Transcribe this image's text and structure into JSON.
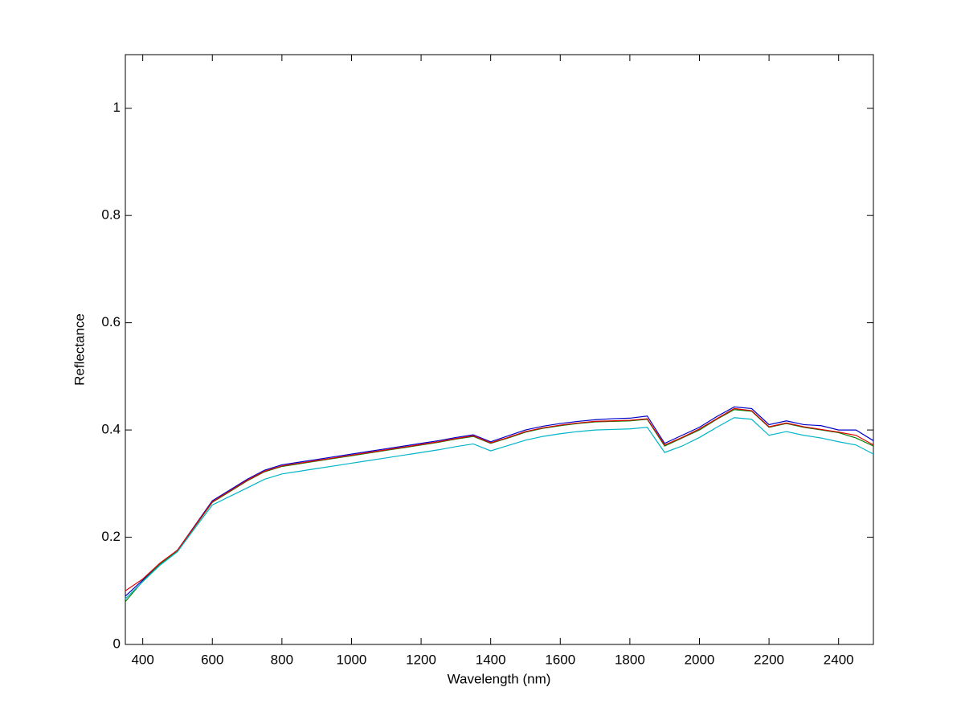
{
  "chart_data": {
    "type": "line",
    "x_label": "Wavelength (nm)",
    "y_label": "Reflectance",
    "x": [
      350,
      400,
      450,
      500,
      550,
      600,
      650,
      700,
      750,
      800,
      850,
      900,
      950,
      1000,
      1050,
      1100,
      1150,
      1200,
      1250,
      1300,
      1350,
      1400,
      1450,
      1500,
      1550,
      1600,
      1650,
      1700,
      1750,
      1800,
      1850,
      1900,
      1950,
      2000,
      2050,
      2100,
      2150,
      2200,
      2250,
      2300,
      2350,
      2400,
      2450,
      2500
    ],
    "series": [
      {
        "color": "#0000c8",
        "values": [
          0.09,
          0.12,
          0.15,
          0.176,
          0.222,
          0.268,
          0.288,
          0.308,
          0.325,
          0.335,
          0.34,
          0.345,
          0.35,
          0.355,
          0.36,
          0.365,
          0.37,
          0.375,
          0.38,
          0.386,
          0.391,
          0.378,
          0.389,
          0.4,
          0.407,
          0.412,
          0.416,
          0.419,
          0.421,
          0.422,
          0.426,
          0.375,
          0.39,
          0.405,
          0.425,
          0.443,
          0.44,
          0.41,
          0.417,
          0.41,
          0.408,
          0.4,
          0.4,
          0.38
        ]
      },
      {
        "color": "#008000",
        "values": [
          0.08,
          0.118,
          0.15,
          0.175,
          0.22,
          0.265,
          0.285,
          0.305,
          0.322,
          0.332,
          0.337,
          0.342,
          0.347,
          0.352,
          0.357,
          0.362,
          0.367,
          0.372,
          0.377,
          0.383,
          0.388,
          0.375,
          0.385,
          0.396,
          0.403,
          0.408,
          0.412,
          0.415,
          0.416,
          0.417,
          0.42,
          0.37,
          0.385,
          0.4,
          0.42,
          0.438,
          0.435,
          0.405,
          0.412,
          0.405,
          0.4,
          0.395,
          0.385,
          0.37
        ]
      },
      {
        "color": "#e00000",
        "values": [
          0.1,
          0.122,
          0.152,
          0.176,
          0.221,
          0.266,
          0.286,
          0.306,
          0.323,
          0.333,
          0.338,
          0.343,
          0.348,
          0.353,
          0.358,
          0.363,
          0.368,
          0.373,
          0.378,
          0.384,
          0.389,
          0.376,
          0.386,
          0.397,
          0.404,
          0.409,
          0.413,
          0.416,
          0.417,
          0.418,
          0.421,
          0.372,
          0.386,
          0.402,
          0.421,
          0.44,
          0.436,
          0.406,
          0.413,
          0.406,
          0.401,
          0.396,
          0.39,
          0.372
        ]
      },
      {
        "color": "#00b4c8",
        "values": [
          0.085,
          0.117,
          0.148,
          0.173,
          0.217,
          0.26,
          0.276,
          0.292,
          0.308,
          0.318,
          0.323,
          0.328,
          0.333,
          0.338,
          0.343,
          0.348,
          0.353,
          0.358,
          0.363,
          0.369,
          0.374,
          0.361,
          0.371,
          0.381,
          0.388,
          0.393,
          0.397,
          0.4,
          0.401,
          0.402,
          0.405,
          0.358,
          0.37,
          0.386,
          0.405,
          0.423,
          0.42,
          0.39,
          0.397,
          0.39,
          0.385,
          0.378,
          0.372,
          0.355
        ]
      }
    ],
    "xlim": [
      350,
      2500
    ],
    "xticks": [
      400,
      600,
      800,
      1000,
      1200,
      1400,
      1600,
      1800,
      2000,
      2200,
      2400
    ],
    "ylim": [
      0,
      1.1
    ],
    "yticks": [
      0,
      0.2,
      0.4,
      0.6,
      0.8,
      1
    ],
    "grid": false
  }
}
